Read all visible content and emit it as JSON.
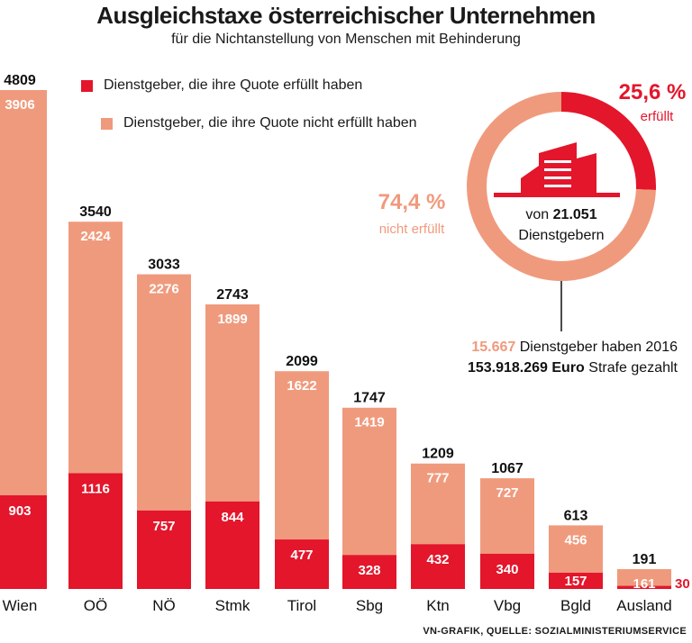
{
  "chart_data": {
    "type": "bar",
    "stacked": true,
    "title": "Ausgleichstaxe österreichischer Unternehmen",
    "subtitle": "für die Nichtanstellung von Menschen mit Behinderung",
    "categories": [
      "Wien",
      "OÖ",
      "NÖ",
      "Stmk",
      "Tirol",
      "Sbg",
      "Ktn",
      "Vbg",
      "Bgld",
      "Ausland"
    ],
    "totals": [
      4809,
      3540,
      3033,
      2743,
      2099,
      1747,
      1209,
      1067,
      613,
      191
    ],
    "series": [
      {
        "name": "Dienstgeber, die ihre Quote erfüllt haben",
        "values": [
          903,
          1116,
          757,
          844,
          477,
          328,
          432,
          340,
          157,
          30
        ]
      },
      {
        "name": "Dienstgeber, die ihre Quote nicht erfüllt haben",
        "values": [
          3906,
          2424,
          2276,
          1899,
          1622,
          1419,
          777,
          727,
          456,
          161
        ]
      }
    ],
    "ylim": [
      0,
      4809
    ],
    "donut": {
      "fulfilled_pct": "25,6 %",
      "fulfilled_label": "erfüllt",
      "not_fulfilled_pct": "74,4 %",
      "not_fulfilled_label": "nicht erfüllt",
      "fulfilled_value": 25.6,
      "not_fulfilled_value": 74.4,
      "center_prefix": "von",
      "center_number": "21.051",
      "center_unit": "Dienstgebern"
    },
    "annotation": {
      "count": "15.667",
      "line1_rest": "Dienstgeber haben 2016",
      "amount": "153.918.269 Euro",
      "line2_rest": "Strafe gezahlt"
    },
    "source": "VN-GRAFIK, QUELLE: SOZIALMINISTERIUMSERVICE"
  },
  "colors": {
    "fulfilled": "#e3162b",
    "not_fulfilled": "#f09a7d",
    "icon": "#e3162b"
  }
}
